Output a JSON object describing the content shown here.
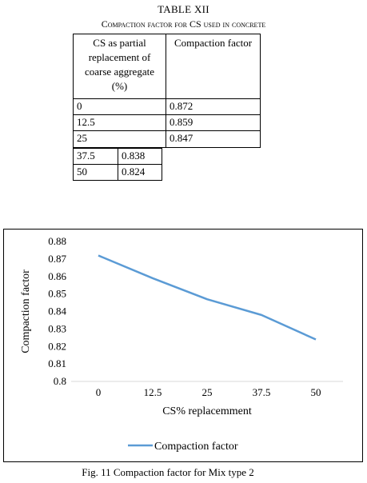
{
  "table": {
    "title": "TABLE XII",
    "caption": "Compaction factor for CS used in concrete",
    "headers": [
      "CS as partial replacement of coarse aggregate (%)",
      "Compaction factor"
    ],
    "rows": [
      [
        "0",
        "0.872"
      ],
      [
        "12.5",
        "0.859"
      ],
      [
        "25",
        "0.847"
      ],
      [
        "37.5",
        "0.838"
      ],
      [
        "50",
        "0.824"
      ]
    ]
  },
  "chart_data": {
    "type": "line",
    "categories": [
      "0",
      "12.5",
      "25",
      "37.5",
      "50"
    ],
    "series": [
      {
        "name": "Compaction factor",
        "values": [
          0.872,
          0.859,
          0.847,
          0.838,
          0.824
        ],
        "color": "#5b9bd5"
      }
    ],
    "xlabel": "CS% replacemment",
    "ylabel": "Compaction factor",
    "ylim": [
      0.8,
      0.88
    ],
    "yticks": [
      "0.88",
      "0.87",
      "0.86",
      "0.85",
      "0.84",
      "0.83",
      "0.82",
      "0.81",
      "0.8"
    ],
    "grid": false,
    "legend": "bottom"
  },
  "figure_caption": "Fig. 11 Compaction factor for Mix type 2"
}
